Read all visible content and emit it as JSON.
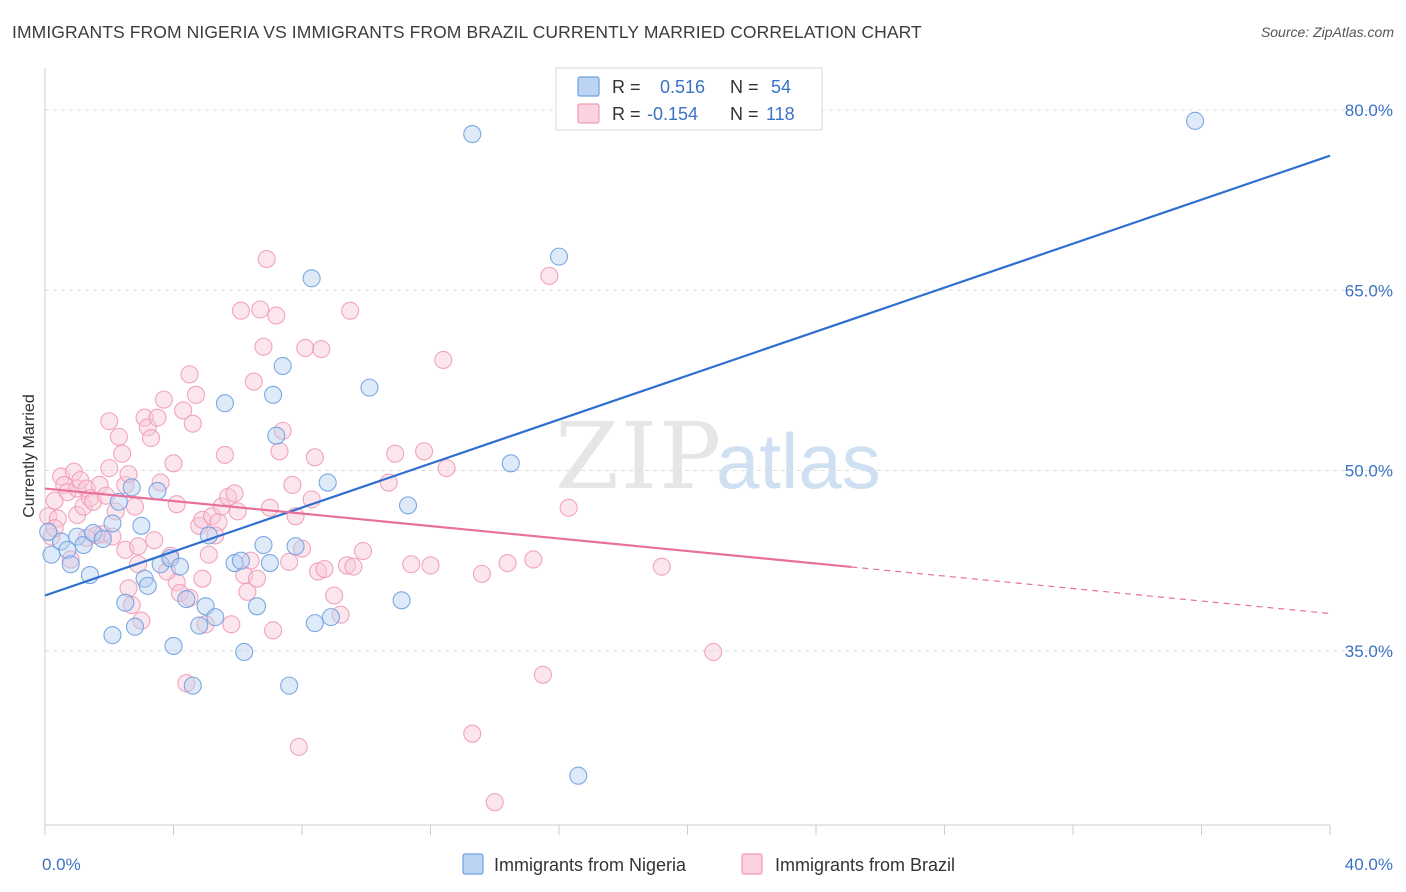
{
  "header": {
    "title": "IMMIGRANTS FROM NIGERIA VS IMMIGRANTS FROM BRAZIL CURRENTLY MARRIED CORRELATION CHART",
    "source": "Source: ZipAtlas.com"
  },
  "watermark": {
    "zip": "ZIP",
    "atlas": "atlas"
  },
  "colors": {
    "nigeria": "#6fa0e0",
    "nigeria_line": "#2f6fd0",
    "brazil": "#f19bb7",
    "brazil_line": "#e8709a",
    "tick_text": "#3b72c4",
    "grid": "#dddddd"
  },
  "legend": {
    "nigeria": {
      "r_label": "R =",
      "r_value": "0.516",
      "n_label": "N =",
      "n_value": "54"
    },
    "brazil": {
      "r_label": "R =",
      "r_value": "-0.154",
      "n_label": "N =",
      "n_value": "118"
    }
  },
  "chart_data": {
    "type": "scatter",
    "title": "IMMIGRANTS FROM NIGERIA VS IMMIGRANTS FROM BRAZIL CURRENTLY MARRIED CORRELATION CHART",
    "xlabel": "",
    "ylabel": "Currently Married",
    "xlim": [
      0,
      40
    ],
    "ylim": [
      20.5,
      82.5
    ],
    "x_tick_labels": [
      "0.0%",
      "40.0%"
    ],
    "y_ticks": [
      35,
      50,
      65,
      80
    ],
    "y_tick_labels": [
      "35.0%",
      "50.0%",
      "65.0%",
      "80.0%"
    ],
    "grid": true,
    "legend_position": "top-center",
    "series": [
      {
        "name": "Immigrants from Nigeria",
        "r": 0.516,
        "n": 54,
        "trend": {
          "x0": 0,
          "y0": 39.6,
          "x1": 40,
          "y1": 76.2,
          "solid_until": 40
        },
        "points": [
          [
            0.2,
            43.0
          ],
          [
            0.5,
            44.1
          ],
          [
            0.7,
            43.4
          ],
          [
            0.8,
            42.2
          ],
          [
            1.0,
            44.5
          ],
          [
            1.2,
            43.8
          ],
          [
            1.4,
            41.3
          ],
          [
            1.5,
            44.8
          ],
          [
            1.8,
            44.3
          ],
          [
            2.1,
            45.6
          ],
          [
            2.3,
            47.4
          ],
          [
            2.5,
            39.0
          ],
          [
            2.7,
            48.6
          ],
          [
            2.1,
            36.3
          ],
          [
            2.8,
            37.0
          ],
          [
            3.0,
            45.4
          ],
          [
            3.1,
            41.0
          ],
          [
            3.2,
            40.4
          ],
          [
            3.5,
            48.3
          ],
          [
            3.6,
            42.2
          ],
          [
            3.9,
            42.7
          ],
          [
            4.0,
            35.4
          ],
          [
            4.2,
            42.0
          ],
          [
            4.4,
            39.3
          ],
          [
            4.6,
            32.1
          ],
          [
            4.8,
            37.1
          ],
          [
            5.0,
            38.7
          ],
          [
            5.1,
            44.6
          ],
          [
            5.3,
            37.8
          ],
          [
            5.6,
            55.6
          ],
          [
            5.9,
            42.3
          ],
          [
            6.1,
            42.5
          ],
          [
            6.2,
            34.9
          ],
          [
            6.6,
            38.7
          ],
          [
            6.8,
            43.8
          ],
          [
            7.0,
            42.3
          ],
          [
            7.1,
            56.3
          ],
          [
            7.2,
            52.9
          ],
          [
            7.4,
            58.7
          ],
          [
            7.6,
            32.1
          ],
          [
            7.8,
            43.7
          ],
          [
            8.3,
            66.0
          ],
          [
            8.4,
            37.3
          ],
          [
            8.8,
            49.0
          ],
          [
            8.9,
            37.8
          ],
          [
            10.1,
            56.9
          ],
          [
            11.1,
            39.2
          ],
          [
            11.3,
            47.1
          ],
          [
            13.3,
            78.0
          ],
          [
            14.5,
            50.6
          ],
          [
            16.0,
            67.8
          ],
          [
            16.6,
            24.6
          ],
          [
            35.8,
            79.1
          ],
          [
            0.1,
            44.9
          ]
        ]
      },
      {
        "name": "Immigrants from Brazil",
        "r": -0.154,
        "n": 118,
        "trend": {
          "x0": 0,
          "y0": 48.5,
          "x1": 40,
          "y1": 38.1,
          "solid_until": 25.1
        },
        "points": [
          [
            0.1,
            46.2
          ],
          [
            0.2,
            44.5
          ],
          [
            0.3,
            47.5
          ],
          [
            0.4,
            46.0
          ],
          [
            0.5,
            49.5
          ],
          [
            0.6,
            48.8
          ],
          [
            0.7,
            48.2
          ],
          [
            0.8,
            42.6
          ],
          [
            0.9,
            49.9
          ],
          [
            1.0,
            46.3
          ],
          [
            1.0,
            48.5
          ],
          [
            1.1,
            49.2
          ],
          [
            1.2,
            47.0
          ],
          [
            1.3,
            48.5
          ],
          [
            1.4,
            47.7
          ],
          [
            1.5,
            47.4
          ],
          [
            1.6,
            44.6
          ],
          [
            1.7,
            48.8
          ],
          [
            1.8,
            44.7
          ],
          [
            1.9,
            47.9
          ],
          [
            2.0,
            54.1
          ],
          [
            2.0,
            50.2
          ],
          [
            2.1,
            44.5
          ],
          [
            2.2,
            46.6
          ],
          [
            2.3,
            52.8
          ],
          [
            2.4,
            51.4
          ],
          [
            2.5,
            48.8
          ],
          [
            2.5,
            43.4
          ],
          [
            2.6,
            49.7
          ],
          [
            2.7,
            38.8
          ],
          [
            2.8,
            47.0
          ],
          [
            2.9,
            43.7
          ],
          [
            3.0,
            37.5
          ],
          [
            3.1,
            54.4
          ],
          [
            3.2,
            53.6
          ],
          [
            3.3,
            52.7
          ],
          [
            3.4,
            44.2
          ],
          [
            3.5,
            54.4
          ],
          [
            3.6,
            49.0
          ],
          [
            3.7,
            55.9
          ],
          [
            3.9,
            42.9
          ],
          [
            4.0,
            50.6
          ],
          [
            4.1,
            47.2
          ],
          [
            4.1,
            40.7
          ],
          [
            4.2,
            39.8
          ],
          [
            4.3,
            55.0
          ],
          [
            4.4,
            32.3
          ],
          [
            4.5,
            58.0
          ],
          [
            4.6,
            53.9
          ],
          [
            4.7,
            56.3
          ],
          [
            4.8,
            45.4
          ],
          [
            4.9,
            41.0
          ],
          [
            4.9,
            45.9
          ],
          [
            5.0,
            37.2
          ],
          [
            5.1,
            43.0
          ],
          [
            5.2,
            46.2
          ],
          [
            5.4,
            45.7
          ],
          [
            5.5,
            47.0
          ],
          [
            5.6,
            51.3
          ],
          [
            5.7,
            47.8
          ],
          [
            5.8,
            37.2
          ],
          [
            5.9,
            48.1
          ],
          [
            6.0,
            46.6
          ],
          [
            6.1,
            63.3
          ],
          [
            6.2,
            41.3
          ],
          [
            6.3,
            39.9
          ],
          [
            6.4,
            42.5
          ],
          [
            6.5,
            57.4
          ],
          [
            6.7,
            63.4
          ],
          [
            6.8,
            60.3
          ],
          [
            6.9,
            67.6
          ],
          [
            7.0,
            46.9
          ],
          [
            7.1,
            36.7
          ],
          [
            7.2,
            62.9
          ],
          [
            7.3,
            51.6
          ],
          [
            7.4,
            53.3
          ],
          [
            7.6,
            42.4
          ],
          [
            7.7,
            48.8
          ],
          [
            7.8,
            46.2
          ],
          [
            7.9,
            27.0
          ],
          [
            8.0,
            43.5
          ],
          [
            8.1,
            60.2
          ],
          [
            8.3,
            47.6
          ],
          [
            8.4,
            51.1
          ],
          [
            8.5,
            41.6
          ],
          [
            8.6,
            60.1
          ],
          [
            8.7,
            41.8
          ],
          [
            9.0,
            39.6
          ],
          [
            9.2,
            38.0
          ],
          [
            9.4,
            42.1
          ],
          [
            9.5,
            63.3
          ],
          [
            9.6,
            42.0
          ],
          [
            9.9,
            43.3
          ],
          [
            10.7,
            49.0
          ],
          [
            10.9,
            51.4
          ],
          [
            11.4,
            42.2
          ],
          [
            11.8,
            51.6
          ],
          [
            12.0,
            42.1
          ],
          [
            12.4,
            59.2
          ],
          [
            12.5,
            50.2
          ],
          [
            13.3,
            28.1
          ],
          [
            13.6,
            41.4
          ],
          [
            14.0,
            22.4
          ],
          [
            14.4,
            42.3
          ],
          [
            15.2,
            42.6
          ],
          [
            15.5,
            33.0
          ],
          [
            15.7,
            66.2
          ],
          [
            16.3,
            46.9
          ],
          [
            19.2,
            42.0
          ],
          [
            20.8,
            34.9
          ],
          [
            2.6,
            40.2
          ],
          [
            3.8,
            41.6
          ],
          [
            5.3,
            44.6
          ],
          [
            6.6,
            41.0
          ],
          [
            1.3,
            44.4
          ],
          [
            0.3,
            45.2
          ],
          [
            2.9,
            42.2
          ],
          [
            4.5,
            39.4
          ]
        ]
      }
    ]
  },
  "bottom_legend": {
    "nigeria_label": "Immigrants from Nigeria",
    "brazil_label": "Immigrants from Brazil"
  }
}
